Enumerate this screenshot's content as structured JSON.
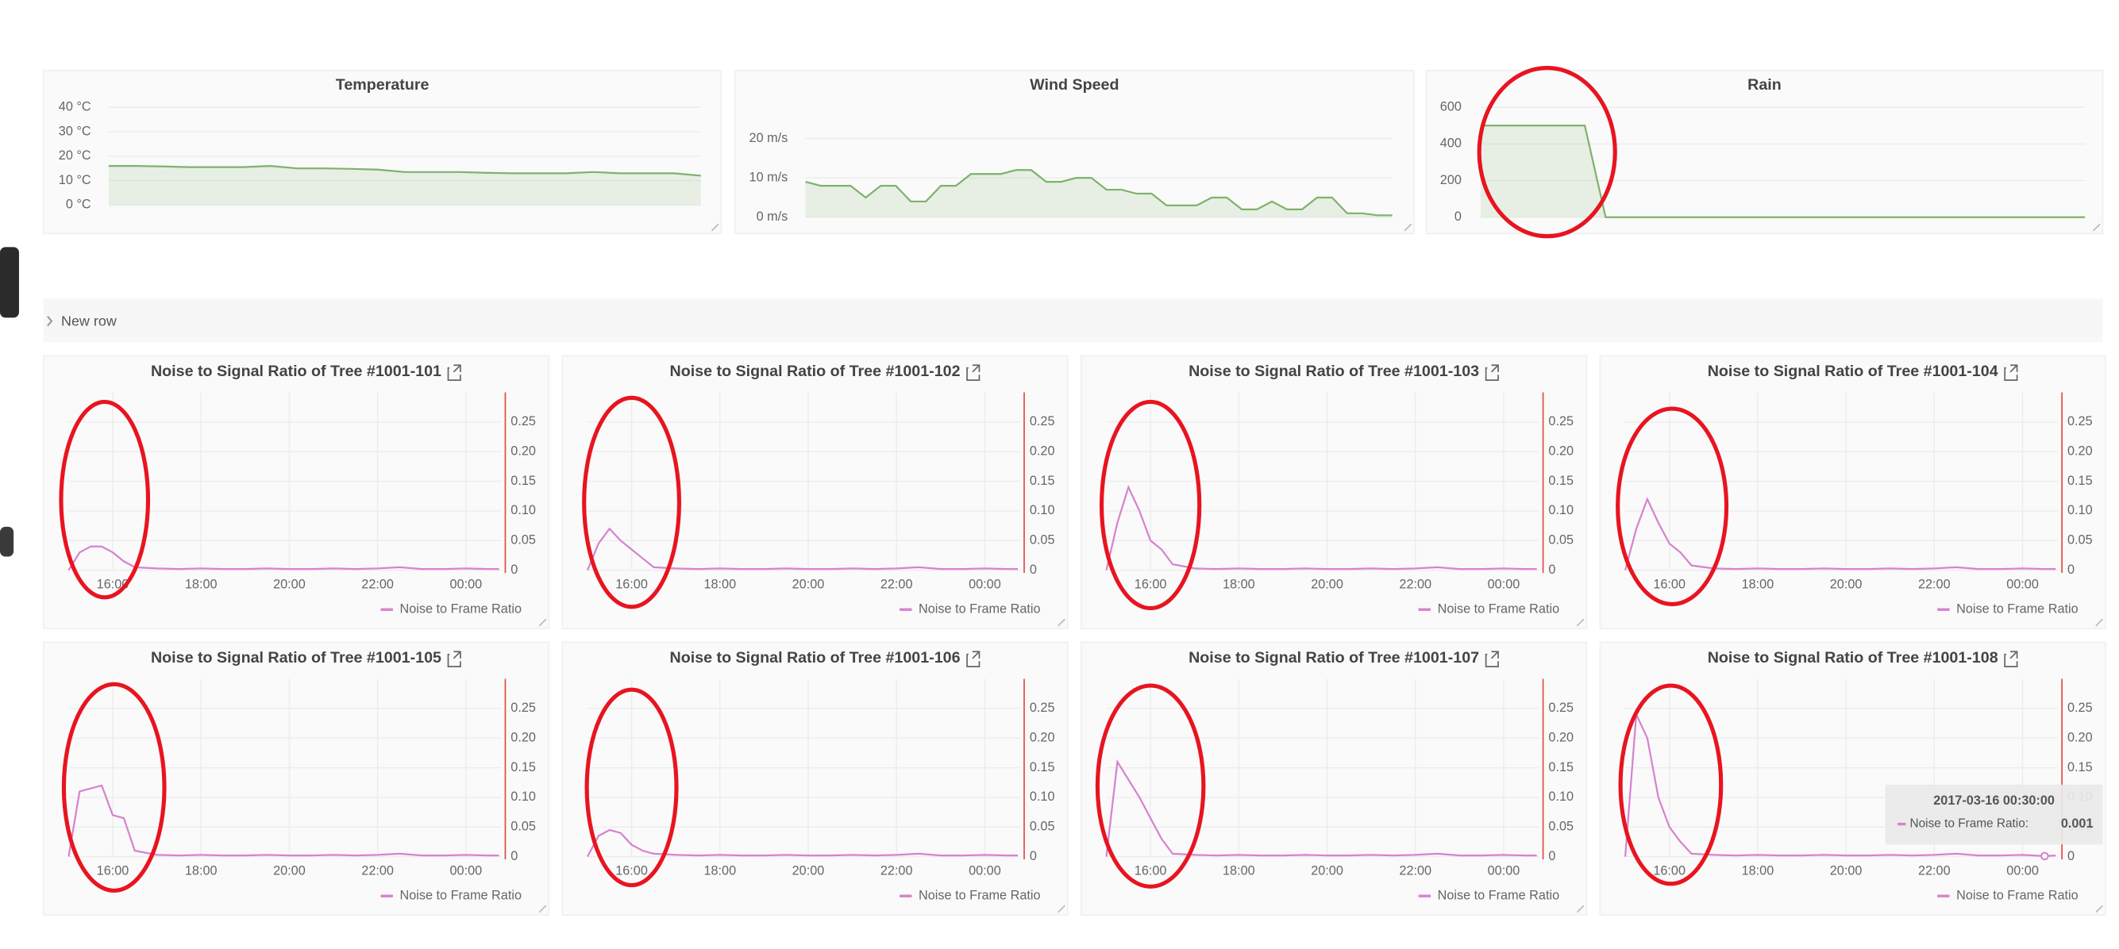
{
  "row_title": "New row",
  "chart_data": [
    {
      "type": "line",
      "title": "Temperature",
      "color": "#7eb26d",
      "grid": true,
      "values": [
        16,
        16,
        15.8,
        15.5,
        15.5,
        15.5,
        16,
        15,
        15,
        14.8,
        14.5,
        13.5,
        13.5,
        13.5,
        13.2,
        13,
        13,
        13,
        13.5,
        13,
        13,
        13,
        12
      ],
      "ylim": [
        0,
        40
      ],
      "yticks": [
        {
          "value": 0,
          "label": "0 °C"
        },
        {
          "value": 10,
          "label": "10 °C"
        },
        {
          "value": 20,
          "label": "20 °C"
        },
        {
          "value": 30,
          "label": "30 °C"
        },
        {
          "value": 40,
          "label": "40 °C"
        }
      ]
    },
    {
      "type": "line",
      "title": "Wind Speed",
      "color": "#7eb26d",
      "grid": true,
      "values": [
        9,
        8,
        8,
        8,
        5,
        8,
        8,
        4,
        4,
        8,
        8,
        11,
        11,
        11,
        12,
        12,
        9,
        9,
        10,
        10,
        7,
        7,
        6,
        6,
        3,
        3,
        3,
        5,
        5,
        2,
        2,
        4,
        2,
        2,
        5,
        5,
        1,
        1,
        0.5,
        0.5
      ],
      "ylim": [
        0,
        25
      ],
      "yticks": [
        {
          "value": 0,
          "label": "0 m/s"
        },
        {
          "value": 10,
          "label": "10 m/s"
        },
        {
          "value": 20,
          "label": "20 m/s"
        }
      ]
    },
    {
      "type": "line",
      "title": "Rain",
      "color": "#7eb26d",
      "grid": true,
      "values": [
        500,
        500,
        500,
        500,
        500,
        500,
        0,
        0,
        0,
        0,
        0,
        0,
        0,
        0,
        0,
        0,
        0,
        0,
        0,
        0,
        0,
        0,
        0,
        0,
        0,
        0,
        0,
        0,
        0,
        0
      ],
      "ylim": [
        0,
        600
      ],
      "yticks": [
        0,
        200,
        400,
        600
      ]
    },
    {
      "type": "line",
      "title": "Noise to Signal Ratio of Tree #1001-101",
      "grid": true,
      "legend": "bottom-right",
      "axis_color": "#e24d42",
      "x": [
        15,
        15.25,
        15.5,
        15.75,
        16,
        16.25,
        16.5,
        17,
        17.5,
        18,
        18.5,
        19,
        19.5,
        20,
        20.5,
        21,
        21.5,
        22,
        22.5,
        23,
        23.5,
        24,
        24.5,
        24.75
      ],
      "series": [
        {
          "name": "Noise to Frame Ratio",
          "color": "#d683ce",
          "values": [
            0,
            0.03,
            0.04,
            0.04,
            0.03,
            0.015,
            0.005,
            0.003,
            0.002,
            0.003,
            0.002,
            0.002,
            0.003,
            0.002,
            0.002,
            0.003,
            0.002,
            0.003,
            0.005,
            0.002,
            0.002,
            0.003,
            0.002,
            0.002
          ]
        }
      ],
      "xlim": [
        15,
        24.8
      ],
      "xticks": [
        {
          "value": 16,
          "label": "16:00"
        },
        {
          "value": 18,
          "label": "18:00"
        },
        {
          "value": 20,
          "label": "20:00"
        },
        {
          "value": 22,
          "label": "22:00"
        },
        {
          "value": 24,
          "label": "00:00"
        }
      ],
      "ylim": [
        0,
        0.3
      ],
      "yticks": [
        0,
        0.05,
        {
          "value": 0.1,
          "label": "0.10"
        },
        0.15,
        {
          "value": 0.2,
          "label": "0.20"
        },
        0.25
      ]
    },
    {
      "type": "line",
      "title": "Noise to Signal Ratio of Tree #1001-102",
      "grid": true,
      "legend": "bottom-right",
      "axis_color": "#e24d42",
      "x": [
        15,
        15.25,
        15.5,
        15.75,
        16,
        16.25,
        16.5,
        17,
        17.5,
        18,
        18.5,
        19,
        19.5,
        20,
        20.5,
        21,
        21.5,
        22,
        22.5,
        23,
        23.5,
        24,
        24.5,
        24.75
      ],
      "series": [
        {
          "name": "Noise to Frame Ratio",
          "color": "#d683ce",
          "values": [
            0,
            0.045,
            0.07,
            0.05,
            0.035,
            0.02,
            0.005,
            0.003,
            0.002,
            0.003,
            0.002,
            0.002,
            0.003,
            0.002,
            0.002,
            0.003,
            0.002,
            0.003,
            0.005,
            0.002,
            0.002,
            0.003,
            0.002,
            0.002
          ]
        }
      ],
      "xlim": [
        15,
        24.8
      ],
      "xticks": [
        {
          "value": 16,
          "label": "16:00"
        },
        {
          "value": 18,
          "label": "18:00"
        },
        {
          "value": 20,
          "label": "20:00"
        },
        {
          "value": 22,
          "label": "22:00"
        },
        {
          "value": 24,
          "label": "00:00"
        }
      ],
      "ylim": [
        0,
        0.3
      ],
      "yticks": [
        0,
        0.05,
        {
          "value": 0.1,
          "label": "0.10"
        },
        0.15,
        {
          "value": 0.2,
          "label": "0.20"
        },
        0.25
      ]
    },
    {
      "type": "line",
      "title": "Noise to Signal Ratio of Tree #1001-103",
      "grid": true,
      "legend": "bottom-right",
      "axis_color": "#e24d42",
      "x": [
        15,
        15.25,
        15.5,
        15.75,
        16,
        16.25,
        16.5,
        17,
        17.5,
        18,
        18.5,
        19,
        19.5,
        20,
        20.5,
        21,
        21.5,
        22,
        22.5,
        23,
        23.5,
        24,
        24.5,
        24.75
      ],
      "series": [
        {
          "name": "Noise to Frame Ratio",
          "color": "#d683ce",
          "values": [
            0,
            0.08,
            0.14,
            0.1,
            0.05,
            0.035,
            0.01,
            0.003,
            0.002,
            0.003,
            0.002,
            0.002,
            0.003,
            0.002,
            0.002,
            0.003,
            0.002,
            0.003,
            0.005,
            0.002,
            0.002,
            0.003,
            0.002,
            0.002
          ]
        }
      ],
      "xlim": [
        15,
        24.8
      ],
      "xticks": [
        {
          "value": 16,
          "label": "16:00"
        },
        {
          "value": 18,
          "label": "18:00"
        },
        {
          "value": 20,
          "label": "20:00"
        },
        {
          "value": 22,
          "label": "22:00"
        },
        {
          "value": 24,
          "label": "00:00"
        }
      ],
      "ylim": [
        0,
        0.3
      ],
      "yticks": [
        0,
        0.05,
        {
          "value": 0.1,
          "label": "0.10"
        },
        0.15,
        {
          "value": 0.2,
          "label": "0.20"
        },
        0.25
      ]
    },
    {
      "type": "line",
      "title": "Noise to Signal Ratio of Tree #1001-104",
      "grid": true,
      "legend": "bottom-right",
      "axis_color": "#e24d42",
      "x": [
        15,
        15.25,
        15.5,
        15.75,
        16,
        16.25,
        16.5,
        17,
        17.5,
        18,
        18.5,
        19,
        19.5,
        20,
        20.5,
        21,
        21.5,
        22,
        22.5,
        23,
        23.5,
        24,
        24.5,
        24.75
      ],
      "series": [
        {
          "name": "Noise to Frame Ratio",
          "color": "#d683ce",
          "values": [
            0,
            0.07,
            0.12,
            0.08,
            0.045,
            0.03,
            0.008,
            0.003,
            0.002,
            0.003,
            0.002,
            0.002,
            0.003,
            0.002,
            0.002,
            0.003,
            0.002,
            0.003,
            0.005,
            0.002,
            0.002,
            0.003,
            0.002,
            0.002
          ]
        }
      ],
      "xlim": [
        15,
        24.8
      ],
      "xticks": [
        {
          "value": 16,
          "label": "16:00"
        },
        {
          "value": 18,
          "label": "18:00"
        },
        {
          "value": 20,
          "label": "20:00"
        },
        {
          "value": 22,
          "label": "22:00"
        },
        {
          "value": 24,
          "label": "00:00"
        }
      ],
      "ylim": [
        0,
        0.3
      ],
      "yticks": [
        0,
        0.05,
        {
          "value": 0.1,
          "label": "0.10"
        },
        0.15,
        {
          "value": 0.2,
          "label": "0.20"
        },
        0.25
      ]
    },
    {
      "type": "line",
      "title": "Noise to Signal Ratio of Tree #1001-105",
      "grid": true,
      "legend": "bottom-right",
      "axis_color": "#e24d42",
      "x": [
        15,
        15.25,
        15.5,
        15.75,
        16,
        16.25,
        16.5,
        17,
        17.5,
        18,
        18.5,
        19,
        19.5,
        20,
        20.5,
        21,
        21.5,
        22,
        22.5,
        23,
        23.5,
        24,
        24.5,
        24.75
      ],
      "series": [
        {
          "name": "Noise to Frame Ratio",
          "color": "#d683ce",
          "values": [
            0,
            0.11,
            0.115,
            0.12,
            0.07,
            0.065,
            0.01,
            0.003,
            0.002,
            0.003,
            0.002,
            0.002,
            0.003,
            0.002,
            0.002,
            0.003,
            0.002,
            0.003,
            0.005,
            0.002,
            0.002,
            0.003,
            0.002,
            0.002
          ]
        }
      ],
      "xlim": [
        15,
        24.8
      ],
      "xticks": [
        {
          "value": 16,
          "label": "16:00"
        },
        {
          "value": 18,
          "label": "18:00"
        },
        {
          "value": 20,
          "label": "20:00"
        },
        {
          "value": 22,
          "label": "22:00"
        },
        {
          "value": 24,
          "label": "00:00"
        }
      ],
      "ylim": [
        0,
        0.3
      ],
      "yticks": [
        0,
        0.05,
        {
          "value": 0.1,
          "label": "0.10"
        },
        0.15,
        {
          "value": 0.2,
          "label": "0.20"
        },
        0.25
      ]
    },
    {
      "type": "line",
      "title": "Noise to Signal Ratio of Tree #1001-106",
      "grid": true,
      "legend": "bottom-right",
      "axis_color": "#e24d42",
      "x": [
        15,
        15.25,
        15.5,
        15.75,
        16,
        16.25,
        16.5,
        17,
        17.5,
        18,
        18.5,
        19,
        19.5,
        20,
        20.5,
        21,
        21.5,
        22,
        22.5,
        23,
        23.5,
        24,
        24.5,
        24.75
      ],
      "series": [
        {
          "name": "Noise to Frame Ratio",
          "color": "#d683ce",
          "values": [
            0,
            0.035,
            0.045,
            0.04,
            0.02,
            0.01,
            0.005,
            0.003,
            0.002,
            0.003,
            0.002,
            0.002,
            0.003,
            0.002,
            0.002,
            0.003,
            0.002,
            0.003,
            0.005,
            0.002,
            0.002,
            0.003,
            0.002,
            0.002
          ]
        }
      ],
      "xlim": [
        15,
        24.8
      ],
      "xticks": [
        {
          "value": 16,
          "label": "16:00"
        },
        {
          "value": 18,
          "label": "18:00"
        },
        {
          "value": 20,
          "label": "20:00"
        },
        {
          "value": 22,
          "label": "22:00"
        },
        {
          "value": 24,
          "label": "00:00"
        }
      ],
      "ylim": [
        0,
        0.3
      ],
      "yticks": [
        0,
        0.05,
        {
          "value": 0.1,
          "label": "0.10"
        },
        0.15,
        {
          "value": 0.2,
          "label": "0.20"
        },
        0.25
      ]
    },
    {
      "type": "line",
      "title": "Noise to Signal Ratio of Tree #1001-107",
      "grid": true,
      "legend": "bottom-right",
      "axis_color": "#e24d42",
      "x": [
        15,
        15.25,
        15.5,
        15.75,
        16,
        16.25,
        16.5,
        17,
        17.5,
        18,
        18.5,
        19,
        19.5,
        20,
        20.5,
        21,
        21.5,
        22,
        22.5,
        23,
        23.5,
        24,
        24.5,
        24.75
      ],
      "series": [
        {
          "name": "Noise to Frame Ratio",
          "color": "#d683ce",
          "values": [
            0,
            0.16,
            0.13,
            0.1,
            0.065,
            0.03,
            0.005,
            0.003,
            0.002,
            0.003,
            0.002,
            0.002,
            0.003,
            0.002,
            0.002,
            0.003,
            0.002,
            0.003,
            0.005,
            0.002,
            0.002,
            0.003,
            0.002,
            0.002
          ]
        }
      ],
      "xlim": [
        15,
        24.8
      ],
      "xticks": [
        {
          "value": 16,
          "label": "16:00"
        },
        {
          "value": 18,
          "label": "18:00"
        },
        {
          "value": 20,
          "label": "20:00"
        },
        {
          "value": 22,
          "label": "22:00"
        },
        {
          "value": 24,
          "label": "00:00"
        }
      ],
      "ylim": [
        0,
        0.3
      ],
      "yticks": [
        0,
        0.05,
        {
          "value": 0.1,
          "label": "0.10"
        },
        0.15,
        {
          "value": 0.2,
          "label": "0.20"
        },
        0.25
      ]
    },
    {
      "type": "line",
      "title": "Noise to Signal Ratio of Tree #1001-108",
      "grid": true,
      "legend": "bottom-right",
      "axis_color": "#e24d42",
      "x": [
        15,
        15.25,
        15.5,
        15.75,
        16,
        16.25,
        16.5,
        17,
        17.5,
        18,
        18.5,
        19,
        19.5,
        20,
        20.5,
        21,
        21.5,
        22,
        22.5,
        23,
        23.5,
        24,
        24.5,
        24.75
      ],
      "series": [
        {
          "name": "Noise to Frame Ratio",
          "color": "#d683ce",
          "values": [
            0,
            0.24,
            0.2,
            0.1,
            0.05,
            0.025,
            0.005,
            0.003,
            0.002,
            0.003,
            0.002,
            0.002,
            0.003,
            0.002,
            0.002,
            0.003,
            0.002,
            0.003,
            0.005,
            0.002,
            0.002,
            0.003,
            0.001,
            0.002
          ]
        }
      ],
      "xlim": [
        15,
        24.8
      ],
      "xticks": [
        {
          "value": 16,
          "label": "16:00"
        },
        {
          "value": 18,
          "label": "18:00"
        },
        {
          "value": 20,
          "label": "20:00"
        },
        {
          "value": 22,
          "label": "22:00"
        },
        {
          "value": 24,
          "label": "00:00"
        }
      ],
      "ylim": [
        0,
        0.3
      ],
      "yticks": [
        0,
        0.05,
        {
          "value": 0.1,
          "label": "0.10"
        },
        0.15,
        {
          "value": 0.2,
          "label": "0.20"
        },
        0.25
      ],
      "tooltip": {
        "title": "2017-03-16 00:30:00",
        "series": "Noise to Frame Ratio:",
        "value": 0.001
      }
    }
  ]
}
